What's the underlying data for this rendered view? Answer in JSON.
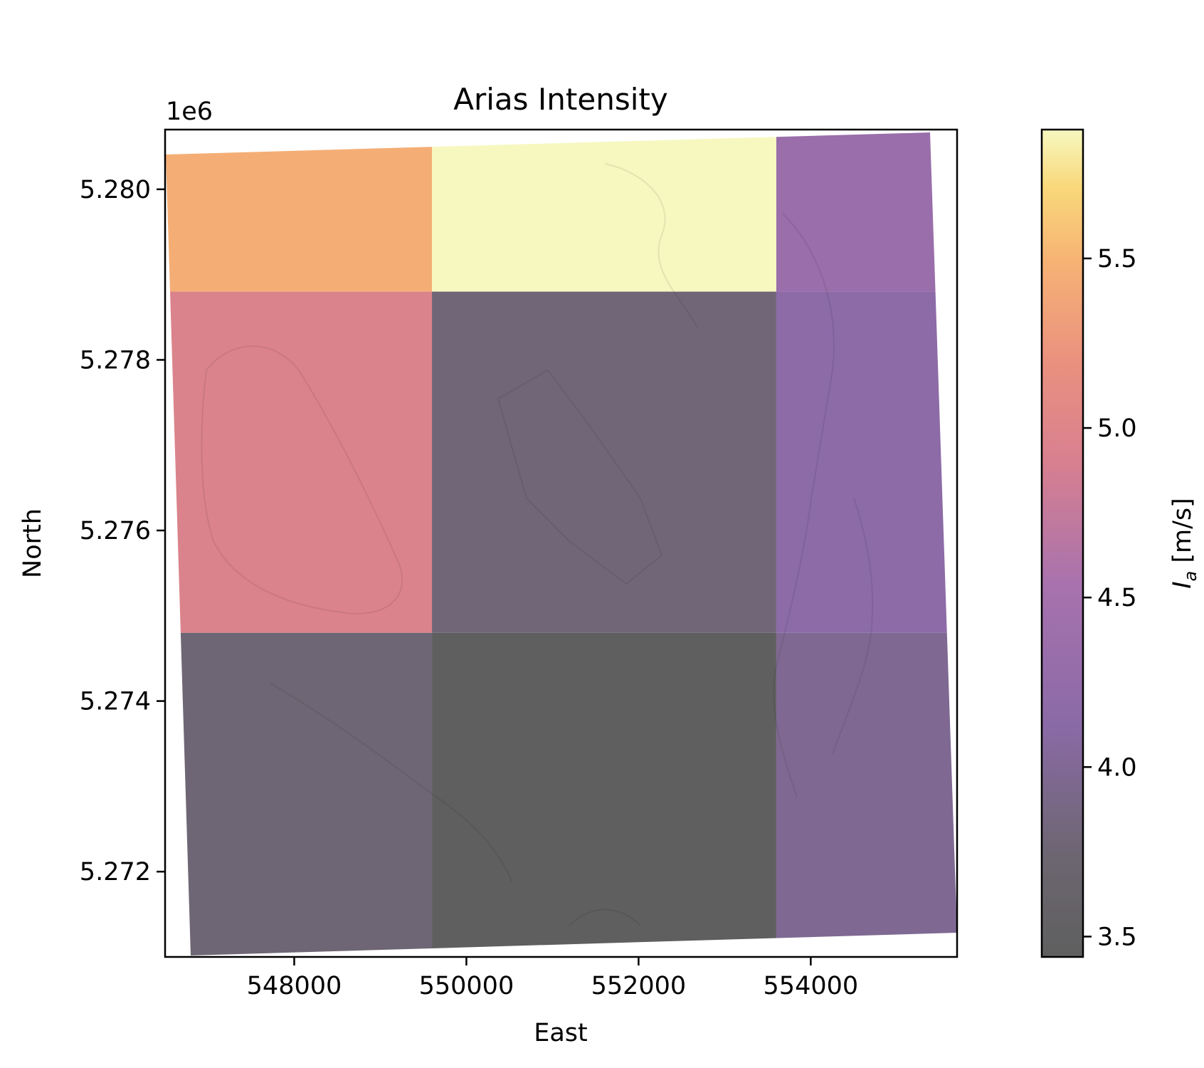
{
  "chart_data": {
    "type": "heatmap",
    "title": "Arias Intensity",
    "xlabel": "East",
    "ylabel": "North",
    "y_offset_label": "1e6",
    "xlim": [
      546500,
      555700
    ],
    "ylim": [
      5.271,
      5.2807
    ],
    "x_ticks": [
      548000,
      550000,
      552000,
      554000
    ],
    "x_tick_labels": [
      "548000",
      "550000",
      "552000",
      "554000"
    ],
    "y_ticks": [
      5.272,
      5.274,
      5.276,
      5.278,
      5.28
    ],
    "y_tick_labels": [
      "5.272",
      "5.274",
      "5.276",
      "5.278",
      "5.280"
    ],
    "grid": false,
    "colorbar": {
      "label_symbol": "I",
      "label_subscript": "a",
      "label_unit": " [m/s]",
      "colormap": "inferno",
      "alpha": 0.7,
      "range": [
        3.44,
        5.88
      ],
      "ticks": [
        3.5,
        4.0,
        4.5,
        5.0,
        5.5
      ],
      "tick_labels": [
        "3.5",
        "4.0",
        "4.5",
        "5.0",
        "5.5"
      ]
    },
    "cells": [
      {
        "x0": 546500,
        "x1": 549600,
        "y0": 5.2788,
        "y1": 5.2807,
        "value": 5.45
      },
      {
        "x0": 549600,
        "x1": 553600,
        "y0": 5.2788,
        "y1": 5.2807,
        "value": 5.88
      },
      {
        "x0": 553600,
        "x1": 555700,
        "y0": 5.2788,
        "y1": 5.2807,
        "value": 4.33
      },
      {
        "x0": 546500,
        "x1": 549600,
        "y0": 5.2748,
        "y1": 5.2788,
        "value": 4.95
      },
      {
        "x0": 549600,
        "x1": 553600,
        "y0": 5.2748,
        "y1": 5.2788,
        "value": 3.78
      },
      {
        "x0": 553600,
        "x1": 555700,
        "y0": 5.2748,
        "y1": 5.2788,
        "value": 4.15
      },
      {
        "x0": 546500,
        "x1": 549600,
        "y0": 5.271,
        "y1": 5.2748,
        "value": 3.76
      },
      {
        "x0": 549600,
        "x1": 553600,
        "y0": 5.271,
        "y1": 5.2748,
        "value": 3.44
      },
      {
        "x0": 553600,
        "x1": 555700,
        "y0": 5.271,
        "y1": 5.2748,
        "value": 3.98
      }
    ]
  }
}
